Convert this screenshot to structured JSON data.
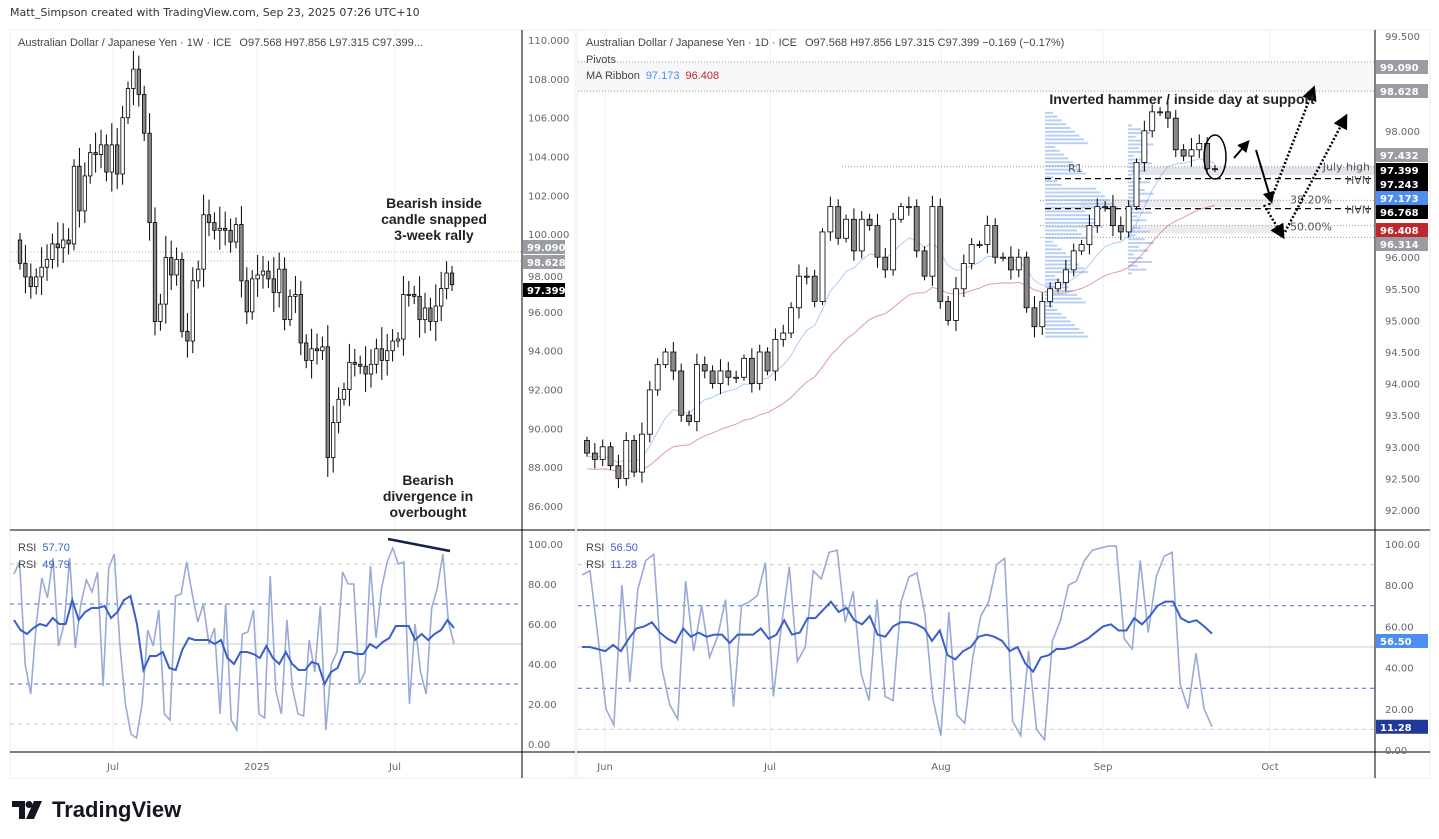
{
  "credit": "Matt_Simpson created with TradingView.com, Sep 23, 2025 07:26 UTC+10",
  "brand": "TradingView",
  "colors": {
    "up_fill": "#ffffff",
    "down_fill": "#888888",
    "rsi_dark": "#3b5fc9",
    "rsi_light": "#9aaad8",
    "ma_fast": "#5b9bf0",
    "ma_slow": "#c0393b",
    "badge_grey": "#9a9ca3",
    "badge_black": "#000000",
    "badge_blue": "#4d8ef0",
    "badge_red": "#c0262e"
  },
  "weekly": {
    "title": "Australian Dollar / Japanese Yen · 1W · ICE",
    "ohlc": "O97.568  H97.856  L97.315  C97.399...",
    "annotations": [
      "Bearish inside",
      "candle snapped",
      "3-week rally",
      "Bearish",
      "divergence in",
      "overbought"
    ],
    "price_ticks": [
      "110.000",
      "108.000",
      "106.000",
      "104.000",
      "102.000",
      "100.000",
      "98.000",
      "96.000",
      "94.000",
      "92.000",
      "90.000",
      "88.000",
      "86.000"
    ],
    "badges": [
      {
        "label": "99.090",
        "color": "grey"
      },
      {
        "label": "98.628",
        "color": "grey"
      },
      {
        "label": "97.399",
        "color": "black"
      }
    ],
    "time_ticks": [
      "Jul",
      "2025",
      "Jul"
    ],
    "rsi": {
      "label1": "RSI",
      "value1": "57.70",
      "label2": "RSI",
      "value2": "49.79",
      "ticks": [
        "100.00",
        "80.00",
        "60.00",
        "40.00",
        "20.00",
        "0.00"
      ]
    }
  },
  "daily": {
    "title": "Australian Dollar / Japanese Yen · 1D · ICE",
    "ohlc": "O97.568  H97.856  L97.315  C97.399  −0.169 (−0.17%)",
    "pivots_label": "Pivots",
    "ma_label": "MA Ribbon",
    "ma_fast": "97.173",
    "ma_slow": "96.408",
    "annotation": "Inverted hammer / inside day at support",
    "levels": {
      "r1": "R1",
      "july_high": "July high",
      "hvn": "HVN",
      "fib38": "38.20%",
      "fib50": "50.00%"
    },
    "price_ticks": [
      "99.500",
      "98.000",
      "96.000",
      "95.500",
      "95.000",
      "94.500",
      "94.000",
      "93.500",
      "93.000",
      "92.500",
      "92.000"
    ],
    "badges": [
      {
        "label": "99.090",
        "color": "grey"
      },
      {
        "label": "98.628",
        "color": "grey"
      },
      {
        "label": "97.432",
        "color": "grey"
      },
      {
        "label": "97.399",
        "color": "black"
      },
      {
        "label": "97.243",
        "color": "black"
      },
      {
        "label": "97.173",
        "color": "blue"
      },
      {
        "label": "96.768",
        "color": "black"
      },
      {
        "label": "96.408",
        "color": "red"
      },
      {
        "label": "96.314",
        "color": "grey"
      }
    ],
    "time_ticks": [
      "Jun",
      "Jul",
      "Aug",
      "Sep",
      "Oct"
    ],
    "rsi": {
      "label1": "RSI",
      "value1": "56.50",
      "label2": "RSI",
      "value2": "11.28",
      "ticks": [
        "100.00",
        "80.00",
        "60.00",
        "40.00",
        "20.00",
        "0.00"
      ],
      "badges": [
        {
          "label": "56.50",
          "color": "blue"
        },
        {
          "label": "11.28",
          "color": "navy"
        }
      ]
    }
  },
  "chart_data": [
    {
      "type": "candlestick",
      "timeframe": "1W",
      "ylim": [
        86,
        110
      ],
      "closes": [
        98.5,
        97.8,
        97.3,
        97.8,
        98.3,
        98.7,
        99.5,
        99.3,
        99.7,
        99.5,
        103.5,
        101.2,
        103,
        104.2,
        104.1,
        104.6,
        103.2,
        104.6,
        103.1,
        106,
        107.5,
        108.5,
        107.2,
        105.2,
        100.6,
        95.5,
        96.4,
        98.8,
        97.9,
        98.7,
        95.0,
        94.5,
        97.6,
        98.2,
        101,
        100.6,
        100.2,
        100.3,
        100.2,
        99.6,
        100.5,
        97.6,
        96.0,
        97.7,
        97.9,
        98.1,
        97.7,
        97.0,
        98.2,
        95.6,
        96.8,
        96.9,
        94.4,
        93.5,
        94.1,
        94.0,
        94.2,
        88.5,
        90.3,
        91.5,
        92.0,
        93.4,
        93.3,
        93.2,
        92.8,
        93.3,
        94.1,
        93.5,
        94.0,
        94.5,
        94.6,
        96.9,
        96.9,
        96.8,
        95.6,
        96.2,
        95.5,
        96.3,
        97.2,
        98.0,
        97.4
      ],
      "levels": [
        99.09,
        98.628
      ],
      "rsi": {
        "ylim": [
          0,
          100
        ],
        "bands": [
          30,
          50,
          70
        ],
        "series": [
          {
            "values": [
              62,
              57,
              55,
              58,
              60,
              59,
              63,
              60,
              60,
              72,
              62,
              66,
              68,
              68,
              69,
              63,
              66,
              72,
              74,
              60,
              37,
              44,
              44,
              46,
              38,
              37,
              47,
              53,
              52,
              52,
              52,
              50,
              52,
              43,
              40,
              46,
              46,
              45,
              43,
              49,
              43,
              40,
              46,
              40,
              37,
              37,
              41,
              40,
              30,
              36,
              38,
              46,
              46,
              45,
              45,
              50,
              48,
              51,
              53,
              59,
              59,
              59,
              52,
              55,
              52,
              55,
              57,
              62,
              58
            ]
          },
          {
            "values": [
              85,
              91,
              40,
              25,
              60,
              83,
              73,
              93,
              49,
              60,
              93,
              48,
              70,
              82,
              76,
              86,
              29,
              88,
              95,
              50,
              20,
              5,
              3,
              20,
              57,
              49,
              67,
              15,
              12,
              74,
              75,
              91,
              75,
              61,
              70,
              50,
              58,
              15,
              70,
              12,
              7,
              55,
              56,
              67,
              15,
              13,
              84,
              27,
              15,
              62,
              28,
              15,
              14,
              52,
              36,
              69,
              7,
              40,
              46,
              86,
              80,
              80,
              30,
              36,
              89,
              53,
              78,
              91,
              98,
              90,
              91,
              20,
              60,
              36,
              25,
              68,
              78,
              95,
              61,
              50
            ]
          }
        ]
      }
    },
    {
      "type": "candlestick",
      "timeframe": "1D",
      "ylim": [
        92,
        99.5
      ],
      "closes": [
        92.9,
        92.8,
        93.0,
        92.7,
        92.5,
        93.1,
        92.6,
        93.2,
        93.9,
        94.3,
        94.5,
        94.2,
        93.5,
        93.4,
        94.3,
        94.2,
        94.0,
        94.2,
        94.1,
        94.1,
        94.4,
        94.0,
        94.5,
        94.2,
        94.7,
        94.8,
        95.2,
        95.7,
        95.7,
        95.3,
        96.4,
        96.8,
        96.3,
        96.6,
        96.1,
        96.6,
        96.5,
        96.0,
        95.8,
        96.6,
        96.8,
        96.8,
        96.1,
        95.7,
        96.8,
        95.3,
        95.0,
        95.5,
        95.9,
        96.2,
        96.2,
        96.5,
        96.0,
        96.0,
        95.8,
        96.0,
        95.2,
        94.9,
        95.3,
        95.5,
        95.6,
        95.8,
        96.1,
        96.2,
        96.5,
        96.8,
        96.8,
        96.5,
        96.4,
        96.8,
        97.5,
        98.0,
        98.3,
        98.3,
        98.2,
        97.7,
        97.6,
        97.7,
        97.8,
        97.4,
        97.4
      ],
      "levels": [
        {
          "value": 99.09,
          "style": "dotted"
        },
        {
          "value": 98.628,
          "style": "dotted"
        },
        {
          "value": 97.432,
          "label": "July high"
        },
        {
          "value": 97.243,
          "label": "HVN",
          "style": "dashed"
        },
        {
          "value": 96.9,
          "label": "38.20%"
        },
        {
          "value": 96.768,
          "label": "HVN",
          "style": "dashed"
        },
        {
          "value": 96.5,
          "label": "50.00%"
        },
        {
          "value": 96.314,
          "style": "dotted"
        }
      ],
      "rsi": {
        "ylim": [
          0,
          100
        ],
        "bands": [
          30,
          50,
          70
        ],
        "series": [
          {
            "values": [
              50,
              50,
              49,
              48,
              51,
              48,
              54,
              59,
              60,
              62,
              57,
              54,
              52,
              59,
              55,
              57,
              55,
              56,
              56,
              52,
              56,
              56,
              56,
              59,
              54,
              56,
              63,
              56,
              57,
              64,
              64,
              68,
              72,
              67,
              69,
              63,
              61,
              65,
              56,
              55,
              60,
              62,
              62,
              61,
              59,
              53,
              58,
              46,
              44,
              48,
              50,
              55,
              56,
              55,
              53,
              48,
              50,
              42,
              38,
              45,
              46,
              49,
              49,
              50,
              52,
              54,
              57,
              60,
              61,
              58,
              58,
              64,
              61,
              65,
              70,
              72,
              72,
              64,
              62,
              63,
              60,
              56.5
            ]
          },
          {
            "values": [
              85,
              87,
              55,
              20,
              12,
              80,
              33,
              78,
              92,
              95,
              40,
              22,
              15,
              82,
              48,
              70,
              45,
              55,
              73,
              21,
              70,
              72,
              75,
              91,
              26,
              60,
              89,
              43,
              50,
              87,
              83,
              96,
              97,
              62,
              77,
              37,
              24,
              73,
              26,
              24,
              72,
              84,
              86,
              66,
              25,
              7,
              67,
              17,
              13,
              45,
              65,
              72,
              90,
              93,
              14,
              7,
              48,
              10,
              5,
              53,
              63,
              80,
              82,
              92,
              97,
              98,
              99,
              99,
              54,
              49,
              92,
              57,
              84,
              94,
              96,
              32,
              20,
              47,
              20,
              11.28
            ]
          }
        ]
      }
    }
  ]
}
